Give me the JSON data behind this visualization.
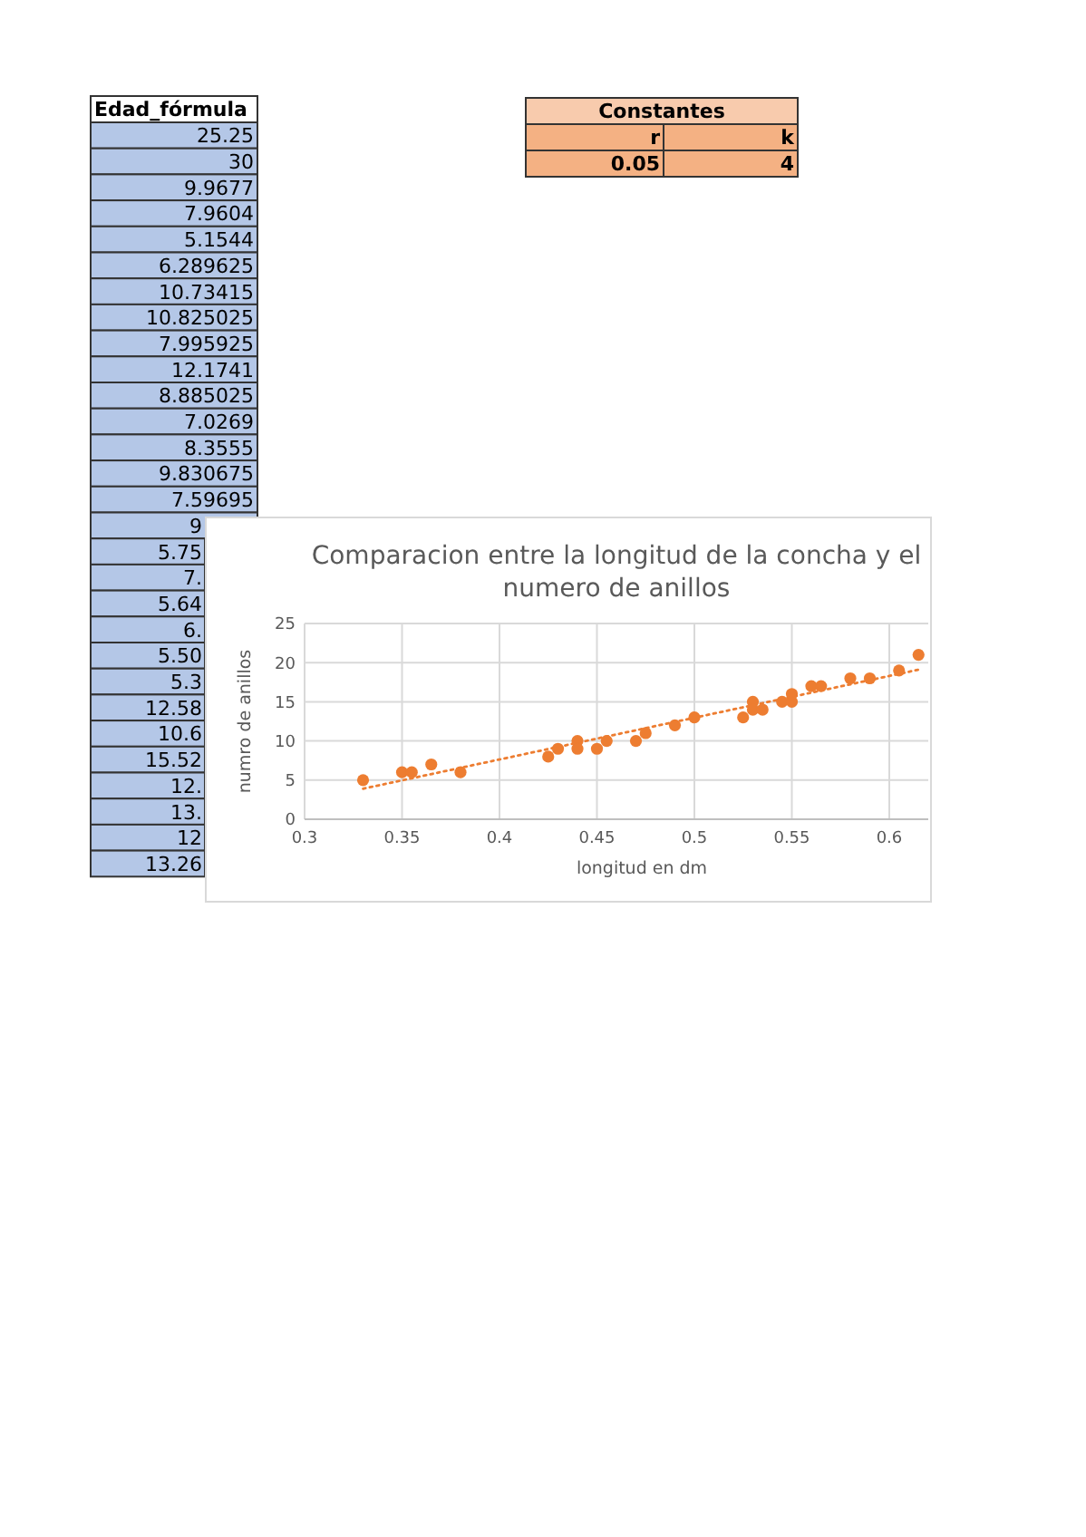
{
  "chart_data": {
    "type": "scatter",
    "title": "Comparacion entre la longitud de la concha y el numero de anillos",
    "xlabel": "longitud en dm",
    "ylabel": "numro de anillos",
    "series": [
      {
        "color": "#ed7d31",
        "marker": "circle",
        "x": [
          0.33,
          0.35,
          0.355,
          0.365,
          0.38,
          0.425,
          0.43,
          0.44,
          0.44,
          0.45,
          0.455,
          0.47,
          0.475,
          0.49,
          0.5,
          0.525,
          0.53,
          0.53,
          0.535,
          0.545,
          0.55,
          0.55,
          0.56,
          0.565,
          0.58,
          0.59,
          0.605,
          0.615
        ],
        "values": [
          5,
          6,
          6,
          7,
          6,
          8,
          9,
          10,
          9,
          9,
          10,
          10,
          11,
          12,
          13,
          13,
          15,
          14,
          14,
          15,
          15,
          16,
          17,
          17,
          18,
          18,
          19,
          21
        ]
      },
      {
        "type": "line",
        "color": "#ed7d31",
        "line_style": "dotted",
        "x": [
          0.33,
          0.615
        ],
        "values": [
          3.9,
          19.1
        ]
      }
    ],
    "xlim": [
      0.3,
      0.62
    ],
    "xticks": [
      0.3,
      0.35,
      0.4,
      0.45,
      0.5,
      0.55,
      0.6
    ],
    "ylim": [
      0,
      25
    ],
    "yticks": [
      0,
      5,
      10,
      15,
      20,
      25
    ],
    "grid": true,
    "annotations": [
      "Edad_fórmula",
      "25.25",
      "30",
      "9.9677",
      "7.9604",
      "5.1544",
      "6.289625",
      "10.73415",
      "10.825025",
      "7.995925",
      "12.1741",
      "8.885025",
      "7.0269",
      "8.3555",
      "9.830675",
      "7.59695",
      "9",
      "5.75",
      "7.",
      "5.64",
      "6.",
      "5.50",
      "5.3",
      "12.58",
      "10.6",
      "15.52",
      "12.",
      "13.",
      "12",
      "13.26",
      "Constantes",
      "r",
      "k",
      "0.05",
      "4"
    ]
  }
}
